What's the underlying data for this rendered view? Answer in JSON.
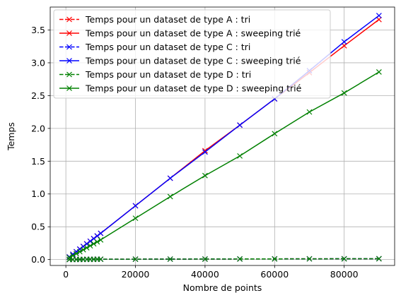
{
  "chart_data": {
    "type": "line",
    "title": "",
    "xlabel": "Nombre de points",
    "ylabel": "Temps",
    "xlim": [
      -4500,
      94500
    ],
    "ylim": [
      -0.09,
      3.85
    ],
    "xticks": [
      0,
      20000,
      40000,
      60000,
      80000
    ],
    "xtick_labels": [
      "0",
      "20000",
      "40000",
      "60000",
      "80000"
    ],
    "yticks": [
      0.0,
      0.5,
      1.0,
      1.5,
      2.0,
      2.5,
      3.0,
      3.5
    ],
    "ytick_labels": [
      "0.0",
      "0.5",
      "1.0",
      "1.5",
      "2.0",
      "2.5",
      "3.0",
      "3.5"
    ],
    "grid": true,
    "legend_position": "top-left",
    "x": [
      1000,
      2000,
      3000,
      4000,
      5000,
      6000,
      7000,
      8000,
      9000,
      10000,
      20000,
      30000,
      40000,
      50000,
      60000,
      70000,
      80000,
      90000
    ],
    "series": [
      {
        "name": "Temps pour un dataset de type A : tri",
        "color": "#ff0000",
        "linestyle": "dashed",
        "marker": "x",
        "values": [
          0.0005,
          0.001,
          0.0015,
          0.002,
          0.0025,
          0.003,
          0.0035,
          0.004,
          0.0045,
          0.005,
          0.006,
          0.007,
          0.008,
          0.009,
          0.01,
          0.011,
          0.012,
          0.013
        ]
      },
      {
        "name": "Temps pour un dataset de type A : sweeping trié",
        "color": "#ff0000",
        "linestyle": "solid",
        "marker": "x",
        "values": [
          0.04,
          0.08,
          0.12,
          0.16,
          0.2,
          0.24,
          0.28,
          0.32,
          0.36,
          0.4,
          0.82,
          1.24,
          1.66,
          2.05,
          2.45,
          2.85,
          3.26,
          3.66
        ]
      },
      {
        "name": "Temps pour un dataset de type C : tri",
        "color": "#0000ff",
        "linestyle": "dashed",
        "marker": "x",
        "values": [
          0.0005,
          0.001,
          0.0015,
          0.002,
          0.0025,
          0.003,
          0.0035,
          0.004,
          0.0045,
          0.005,
          0.006,
          0.007,
          0.008,
          0.009,
          0.01,
          0.011,
          0.012,
          0.013
        ]
      },
      {
        "name": "Temps pour un dataset de type C : sweeping trié",
        "color": "#0000ff",
        "linestyle": "solid",
        "marker": "x",
        "values": [
          0.04,
          0.08,
          0.12,
          0.16,
          0.2,
          0.24,
          0.28,
          0.32,
          0.36,
          0.4,
          0.82,
          1.24,
          1.64,
          2.05,
          2.45,
          2.88,
          3.32,
          3.72
        ]
      },
      {
        "name": "Temps pour un dataset de type D : tri",
        "color": "#008000",
        "linestyle": "dashed",
        "marker": "x",
        "values": [
          0.0005,
          0.001,
          0.0015,
          0.002,
          0.0025,
          0.003,
          0.0035,
          0.004,
          0.0045,
          0.005,
          0.006,
          0.007,
          0.008,
          0.009,
          0.01,
          0.011,
          0.012,
          0.013
        ]
      },
      {
        "name": "Temps pour un dataset de type D : sweeping trié",
        "color": "#008000",
        "linestyle": "solid",
        "marker": "x",
        "values": [
          0.03,
          0.06,
          0.09,
          0.12,
          0.15,
          0.18,
          0.21,
          0.24,
          0.27,
          0.3,
          0.63,
          0.96,
          1.28,
          1.58,
          1.92,
          2.25,
          2.54,
          2.86
        ]
      }
    ]
  }
}
